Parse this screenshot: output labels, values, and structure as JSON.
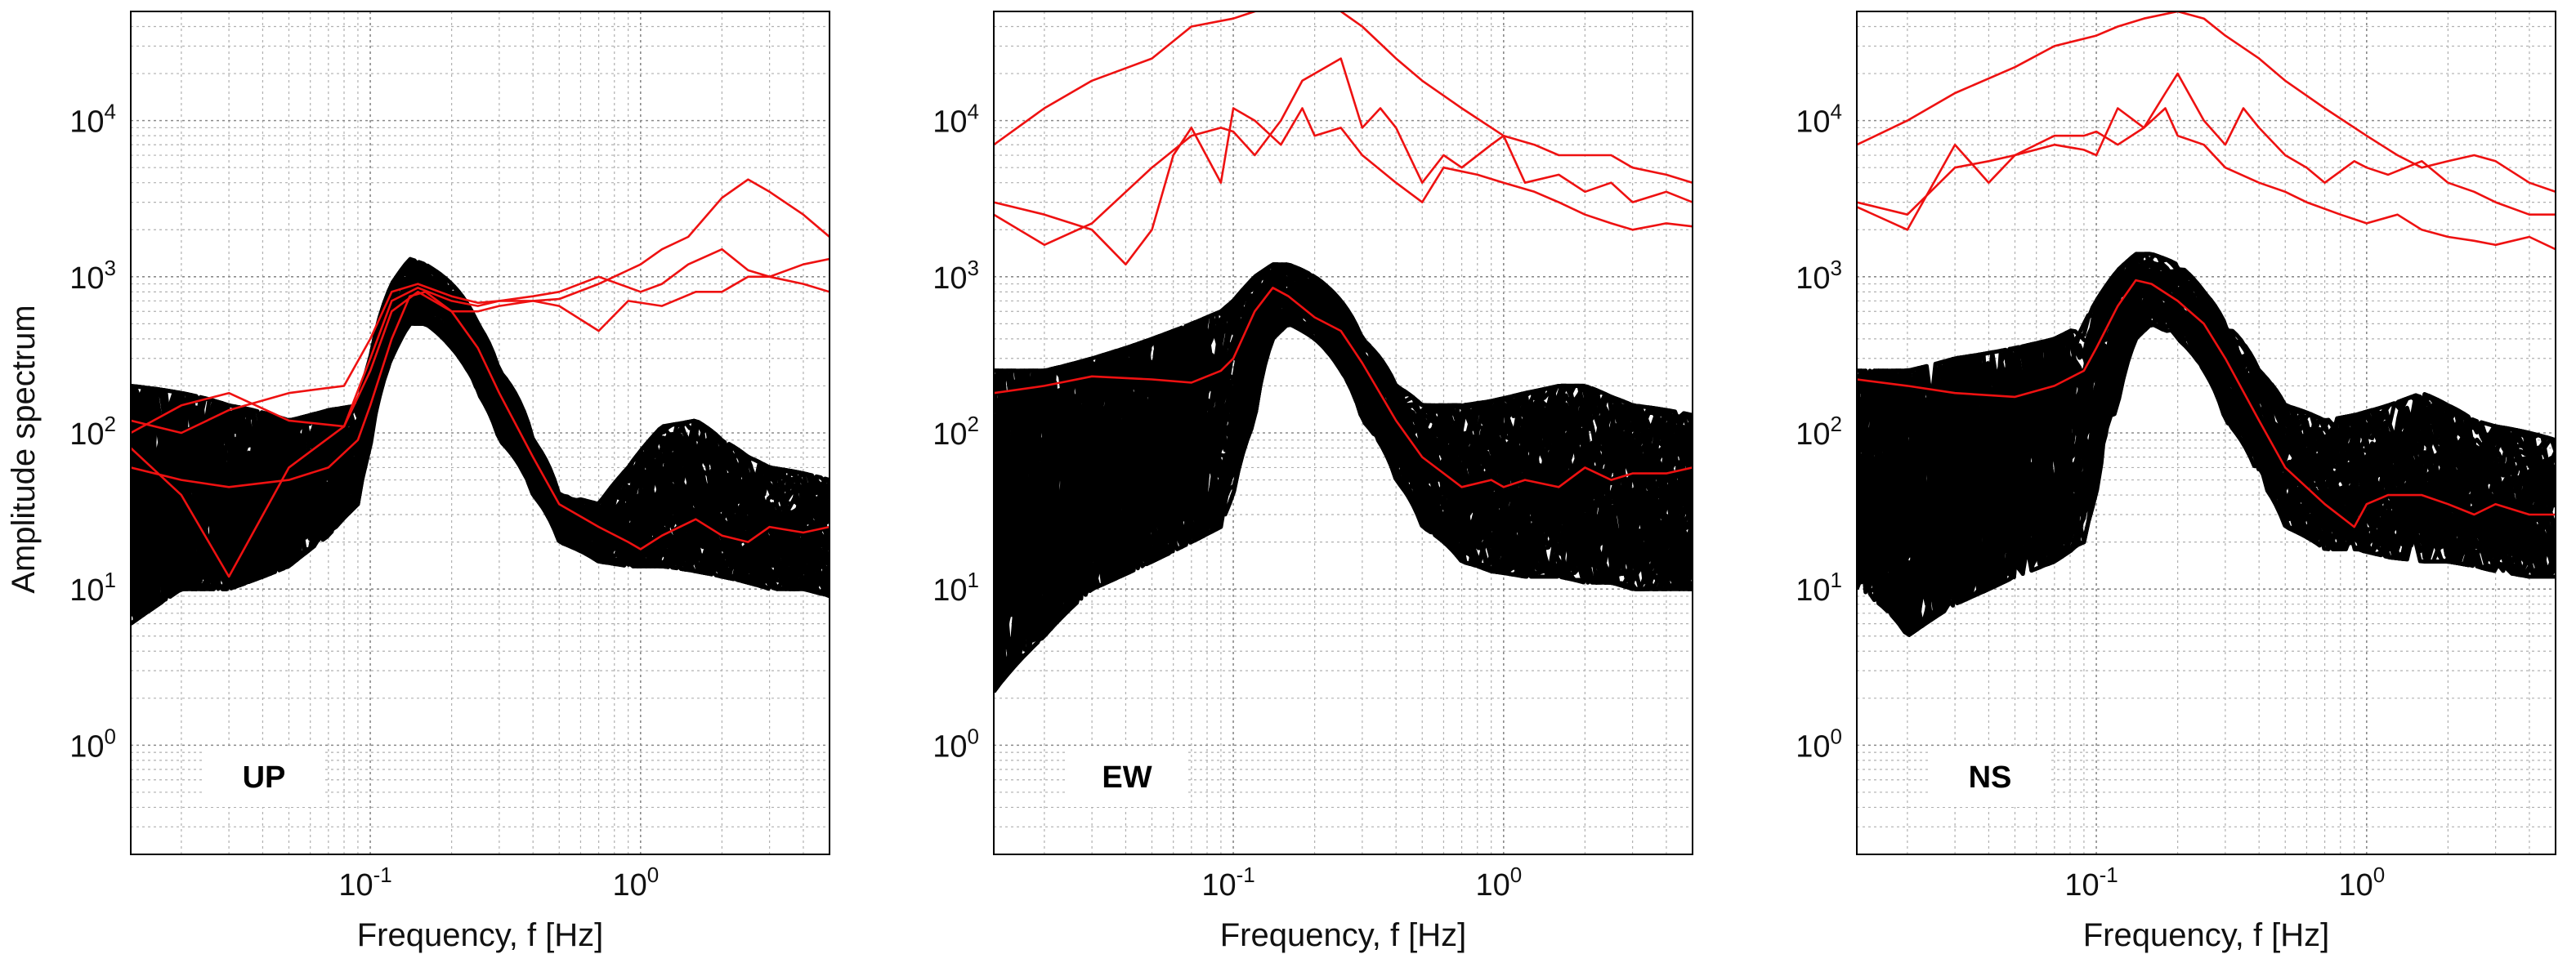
{
  "figure": {
    "ylabel": "Amplitude spectrum",
    "xlabel": "Frequency, f [Hz]"
  },
  "chart_data": [
    {
      "type": "line",
      "panel_label": "UP",
      "xlabel": "Frequency, f [Hz]",
      "ylabel": "Amplitude spectrum",
      "xscale": "log",
      "yscale": "log",
      "xlim": [
        0.013,
        5.0
      ],
      "ylim": [
        0.2,
        50000
      ],
      "x_ticks": [
        "10^-1",
        "10^0"
      ],
      "y_ticks": [
        "10^0",
        "10^1",
        "10^2",
        "10^3",
        "10^4"
      ],
      "grid": true,
      "black_envelope": {
        "f": [
          0.013,
          0.02,
          0.03,
          0.05,
          0.07,
          0.09,
          0.1,
          0.12,
          0.14,
          0.16,
          0.2,
          0.25,
          0.3,
          0.4,
          0.5,
          0.7,
          0.9,
          1.2,
          1.6,
          2.0,
          2.5,
          3.0,
          4.0,
          5.0
        ],
        "upper": [
          200,
          180,
          150,
          120,
          140,
          150,
          300,
          900,
          1300,
          1200,
          900,
          500,
          250,
          90,
          40,
          35,
          60,
          110,
          120,
          90,
          70,
          60,
          55,
          50
        ],
        "lower": [
          6,
          10,
          10,
          14,
          22,
          35,
          80,
          300,
          500,
          500,
          350,
          180,
          90,
          40,
          20,
          15,
          14,
          14,
          13,
          12,
          11,
          10,
          10,
          9
        ],
        "n_traces": 60
      },
      "red_series": [
        {
          "f": [
            0.013,
            0.02,
            0.03,
            0.05,
            0.08,
            0.1,
            0.12,
            0.15,
            0.2,
            0.25,
            0.3,
            0.4,
            0.5,
            0.7,
            1.0,
            1.2,
            1.5,
            2.0,
            2.5,
            3.0,
            4.0,
            5.0
          ],
          "values": [
            120,
            100,
            140,
            180,
            200,
            400,
            800,
            900,
            750,
            680,
            700,
            700,
            720,
            900,
            1200,
            1500,
            1800,
            3200,
            4200,
            3500,
            2500,
            1800
          ]
        },
        {
          "f": [
            0.013,
            0.02,
            0.03,
            0.05,
            0.08,
            0.1,
            0.12,
            0.15,
            0.2,
            0.25,
            0.3,
            0.4,
            0.5,
            0.7,
            1.0,
            1.2,
            1.5,
            2.0,
            2.5,
            3.0,
            4.0,
            5.0
          ],
          "values": [
            80,
            40,
            12,
            60,
            110,
            300,
            700,
            850,
            700,
            650,
            700,
            750,
            800,
            1000,
            800,
            900,
            1200,
            1500,
            1100,
            1000,
            1200,
            1300
          ]
        },
        {
          "f": [
            0.013,
            0.02,
            0.03,
            0.05,
            0.08,
            0.1,
            0.12,
            0.15,
            0.2,
            0.25,
            0.3,
            0.4,
            0.5,
            0.7,
            0.9,
            1.2,
            1.6,
            2.0,
            2.5,
            3.0,
            4.0,
            5.0
          ],
          "values": [
            100,
            150,
            180,
            120,
            110,
            250,
            600,
            800,
            600,
            600,
            650,
            700,
            650,
            450,
            700,
            650,
            800,
            800,
            1000,
            1000,
            900,
            800
          ]
        },
        {
          "f": [
            0.013,
            0.02,
            0.03,
            0.05,
            0.07,
            0.09,
            0.1,
            0.12,
            0.14,
            0.16,
            0.2,
            0.25,
            0.3,
            0.4,
            0.5,
            0.7,
            0.9,
            1.0,
            1.2,
            1.6,
            2.0,
            2.5,
            3.0,
            4.0,
            5.0
          ],
          "values": [
            60,
            50,
            45,
            50,
            60,
            90,
            150,
            400,
            750,
            800,
            600,
            350,
            180,
            70,
            35,
            25,
            20,
            18,
            22,
            28,
            22,
            20,
            25,
            23,
            25
          ]
        }
      ]
    },
    {
      "type": "line",
      "panel_label": "EW",
      "xlabel": "Frequency, f [Hz]",
      "xscale": "log",
      "yscale": "log",
      "xlim": [
        0.013,
        5.0
      ],
      "ylim": [
        0.2,
        50000
      ],
      "x_ticks": [
        "10^-1",
        "10^0"
      ],
      "y_ticks": [
        "10^0",
        "10^1",
        "10^2",
        "10^3",
        "10^4"
      ],
      "grid": true,
      "black_envelope": {
        "f": [
          0.013,
          0.02,
          0.03,
          0.05,
          0.07,
          0.09,
          0.1,
          0.12,
          0.14,
          0.16,
          0.2,
          0.25,
          0.3,
          0.4,
          0.5,
          0.7,
          0.9,
          1.2,
          1.6,
          2.0,
          2.5,
          3.0,
          4.0,
          5.0
        ],
        "upper": [
          250,
          250,
          300,
          400,
          500,
          600,
          700,
          1000,
          1200,
          1200,
          1000,
          700,
          400,
          200,
          150,
          150,
          160,
          180,
          200,
          200,
          170,
          150,
          140,
          130
        ],
        "lower": [
          2.2,
          5,
          10,
          15,
          20,
          25,
          40,
          120,
          400,
          500,
          400,
          250,
          120,
          50,
          25,
          15,
          13,
          12,
          12,
          11,
          11,
          10,
          10,
          10
        ],
        "n_traces": 60
      },
      "red_series": [
        {
          "f": [
            0.013,
            0.02,
            0.03,
            0.05,
            0.07,
            0.1,
            0.12,
            0.15,
            0.2,
            0.25,
            0.3,
            0.4,
            0.5,
            0.7,
            1.0,
            1.3,
            1.6,
            2.0,
            2.5,
            3.0,
            4.0,
            5.0
          ],
          "values": [
            7000,
            12000,
            18000,
            25000,
            40000,
            45000,
            50000,
            55000,
            60000,
            50000,
            40000,
            25000,
            18000,
            12000,
            8000,
            7000,
            6000,
            6000,
            6000,
            5000,
            4500,
            4000
          ]
        },
        {
          "f": [
            0.013,
            0.02,
            0.03,
            0.05,
            0.07,
            0.09,
            0.1,
            0.12,
            0.15,
            0.18,
            0.2,
            0.25,
            0.3,
            0.35,
            0.4,
            0.5,
            0.6,
            0.7,
            0.9,
            1.0,
            1.2,
            1.6,
            2.0,
            2.5,
            3.0,
            4.0,
            5.0
          ],
          "values": [
            2500,
            1600,
            2200,
            5000,
            8000,
            9000,
            8500,
            6000,
            10000,
            18000,
            20000,
            25000,
            9000,
            12000,
            9000,
            4000,
            6000,
            5000,
            7000,
            8000,
            4000,
            4500,
            3500,
            4000,
            3000,
            3500,
            3000
          ]
        },
        {
          "f": [
            0.013,
            0.02,
            0.03,
            0.04,
            0.05,
            0.06,
            0.07,
            0.09,
            0.1,
            0.12,
            0.15,
            0.18,
            0.2,
            0.25,
            0.3,
            0.4,
            0.5,
            0.6,
            0.8,
            1.0,
            1.3,
            1.6,
            2.0,
            2.5,
            3.0,
            4.0,
            5.0
          ],
          "values": [
            3000,
            2500,
            2000,
            1200,
            2000,
            6000,
            9000,
            4000,
            12000,
            10000,
            7000,
            12000,
            8000,
            9000,
            6000,
            4000,
            3000,
            5000,
            4500,
            4000,
            3500,
            3000,
            2500,
            2200,
            2000,
            2200,
            2100
          ]
        },
        {
          "f": [
            0.013,
            0.02,
            0.03,
            0.05,
            0.07,
            0.09,
            0.1,
            0.12,
            0.14,
            0.16,
            0.2,
            0.25,
            0.3,
            0.4,
            0.5,
            0.7,
            0.9,
            1.0,
            1.2,
            1.6,
            2.0,
            2.5,
            3.0,
            4.0,
            5.0
          ],
          "values": [
            180,
            200,
            230,
            220,
            210,
            250,
            300,
            600,
            850,
            750,
            550,
            450,
            280,
            120,
            70,
            45,
            50,
            45,
            50,
            45,
            60,
            50,
            55,
            55,
            60
          ]
        }
      ]
    },
    {
      "type": "line",
      "panel_label": "NS",
      "xlabel": "Frequency, f [Hz]",
      "xscale": "log",
      "yscale": "log",
      "xlim": [
        0.013,
        5.0
      ],
      "ylim": [
        0.2,
        50000
      ],
      "x_ticks": [
        "10^-1",
        "10^0"
      ],
      "y_ticks": [
        "10^0",
        "10^1",
        "10^2",
        "10^3",
        "10^4"
      ],
      "grid": true,
      "black_envelope": {
        "f": [
          0.013,
          0.02,
          0.03,
          0.05,
          0.07,
          0.09,
          0.1,
          0.12,
          0.14,
          0.16,
          0.2,
          0.25,
          0.3,
          0.4,
          0.5,
          0.7,
          0.9,
          1.2,
          1.6,
          2.0,
          2.5,
          3.0,
          4.0,
          5.0
        ],
        "upper": [
          250,
          250,
          300,
          350,
          400,
          500,
          700,
          1100,
          1400,
          1400,
          1200,
          800,
          500,
          250,
          150,
          120,
          130,
          150,
          180,
          150,
          120,
          110,
          100,
          90
        ],
        "lower": [
          10,
          5,
          8,
          12,
          15,
          20,
          40,
          150,
          400,
          500,
          400,
          250,
          120,
          50,
          25,
          18,
          18,
          16,
          15,
          15,
          14,
          13,
          12,
          12
        ],
        "n_traces": 60
      },
      "red_series": [
        {
          "f": [
            0.013,
            0.02,
            0.03,
            0.05,
            0.07,
            0.1,
            0.12,
            0.15,
            0.2,
            0.25,
            0.3,
            0.4,
            0.5,
            0.7,
            1.0,
            1.3,
            1.6,
            2.0,
            2.5,
            3.0,
            4.0,
            5.0
          ],
          "values": [
            7000,
            10000,
            15000,
            22000,
            30000,
            35000,
            40000,
            45000,
            50000,
            45000,
            35000,
            25000,
            18000,
            12000,
            8000,
            6000,
            5000,
            5500,
            6000,
            5500,
            4000,
            3500
          ]
        },
        {
          "f": [
            0.013,
            0.02,
            0.03,
            0.04,
            0.05,
            0.07,
            0.09,
            0.1,
            0.12,
            0.15,
            0.18,
            0.2,
            0.25,
            0.3,
            0.35,
            0.4,
            0.5,
            0.6,
            0.7,
            0.9,
            1.0,
            1.2,
            1.6,
            2.0,
            2.5,
            3.0,
            4.0,
            5.0
          ],
          "values": [
            2800,
            2000,
            7000,
            4000,
            6000,
            7000,
            6500,
            6000,
            12000,
            9000,
            15000,
            20000,
            10000,
            7000,
            12000,
            9000,
            6000,
            5000,
            4000,
            5500,
            5000,
            4500,
            5500,
            4000,
            3500,
            3000,
            2500,
            2500
          ]
        },
        {
          "f": [
            0.013,
            0.02,
            0.03,
            0.04,
            0.05,
            0.07,
            0.09,
            0.1,
            0.12,
            0.15,
            0.18,
            0.2,
            0.25,
            0.3,
            0.4,
            0.5,
            0.6,
            0.8,
            1.0,
            1.3,
            1.6,
            2.0,
            2.5,
            3.0,
            4.0,
            5.0
          ],
          "values": [
            3000,
            2500,
            5000,
            5500,
            6000,
            8000,
            8000,
            8500,
            7000,
            9000,
            12000,
            8000,
            7000,
            5000,
            4000,
            3500,
            3000,
            2500,
            2200,
            2500,
            2000,
            1800,
            1700,
            1600,
            1800,
            1500
          ]
        },
        {
          "f": [
            0.013,
            0.02,
            0.03,
            0.05,
            0.07,
            0.09,
            0.1,
            0.12,
            0.14,
            0.16,
            0.2,
            0.25,
            0.3,
            0.4,
            0.5,
            0.7,
            0.9,
            1.0,
            1.2,
            1.6,
            2.0,
            2.5,
            3.0,
            4.0,
            5.0
          ],
          "values": [
            220,
            200,
            180,
            170,
            200,
            250,
            350,
            650,
            950,
            900,
            700,
            500,
            300,
            120,
            60,
            35,
            25,
            35,
            40,
            40,
            35,
            30,
            35,
            30,
            30
          ]
        }
      ]
    }
  ]
}
